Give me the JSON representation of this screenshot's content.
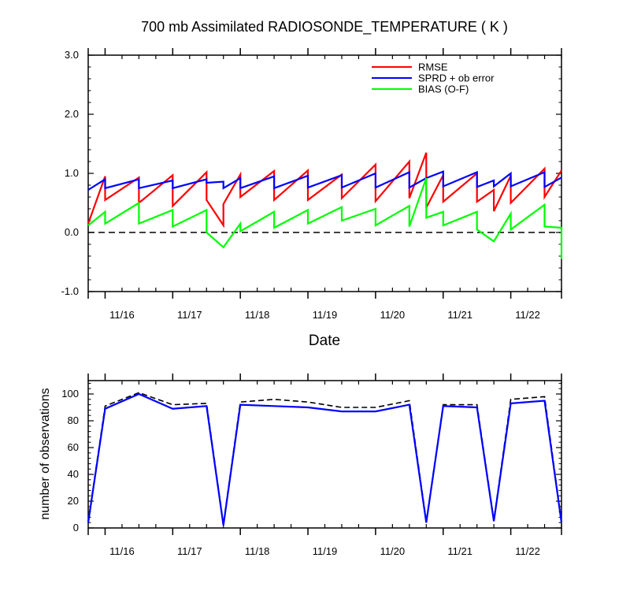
{
  "title": "700 mb Assimilated RADIOSONDE_TEMPERATURE ( K )",
  "chart_data": [
    {
      "type": "line",
      "name": "top",
      "xlabel": "Date",
      "ylabel": "",
      "xlim": [
        0,
        7
      ],
      "ylim": [
        -1.0,
        3.0
      ],
      "ytick_values": [
        -1.0,
        0.0,
        1.0,
        2.0,
        3.0
      ],
      "ytick_labels": [
        "-1.0",
        "0.0",
        "1.0",
        "2.0",
        "3.0"
      ],
      "xtick_labels": [
        "11/16",
        "11/17",
        "11/18",
        "11/19",
        "11/20",
        "11/21",
        "11/22"
      ],
      "zero_line": true,
      "legend_position": "top-right",
      "legend": [
        "RMSE",
        "SPRD + ob error",
        "BIAS (O-F)"
      ],
      "series": [
        {
          "name": "RMSE",
          "color": "#ff0000",
          "x": [
            0,
            0.25,
            0.25,
            0.75,
            0.75,
            1.25,
            1.25,
            1.75,
            1.75,
            2.0,
            2.0,
            2.25,
            2.25,
            2.75,
            2.75,
            3.25,
            3.25,
            3.75,
            3.75,
            4.25,
            4.25,
            4.75,
            4.75,
            5.0,
            5.0,
            5.25,
            5.25,
            5.75,
            5.75,
            6.0,
            6.0,
            6.25,
            6.25,
            6.75,
            6.75,
            7.0
          ],
          "values": [
            0.15,
            0.95,
            0.55,
            0.93,
            0.5,
            0.97,
            0.45,
            1.02,
            0.55,
            0.12,
            0.48,
            0.98,
            0.6,
            1.04,
            0.55,
            1.05,
            0.55,
            0.98,
            0.58,
            1.15,
            0.53,
            1.2,
            0.58,
            1.35,
            0.42,
            0.97,
            0.52,
            1.0,
            0.52,
            0.72,
            0.36,
            0.96,
            0.5,
            1.08,
            0.6,
            1.05
          ]
        },
        {
          "name": "SPRD + ob error",
          "color": "#0000ff",
          "x": [
            0,
            0.25,
            0.25,
            0.75,
            0.75,
            1.25,
            1.25,
            1.75,
            1.75,
            2.0,
            2.0,
            2.25,
            2.25,
            2.75,
            2.75,
            3.25,
            3.25,
            3.75,
            3.75,
            4.25,
            4.25,
            4.75,
            4.75,
            5.0,
            5.0,
            5.25,
            5.25,
            5.75,
            5.75,
            6.0,
            6.0,
            6.25,
            6.25,
            6.75,
            6.75,
            7.0
          ],
          "values": [
            0.72,
            0.9,
            0.75,
            0.9,
            0.75,
            0.88,
            0.75,
            0.9,
            0.84,
            0.86,
            0.75,
            0.92,
            0.75,
            0.95,
            0.75,
            0.96,
            0.76,
            0.97,
            0.76,
            1.0,
            0.76,
            1.02,
            0.76,
            0.92,
            0.92,
            1.03,
            0.78,
            1.02,
            0.77,
            0.88,
            0.78,
            1.0,
            0.78,
            1.02,
            0.77,
            0.93
          ]
        },
        {
          "name": "BIAS (O-F)",
          "color": "#00ff00",
          "x": [
            0,
            0.25,
            0.25,
            0.75,
            0.75,
            1.25,
            1.25,
            1.75,
            1.75,
            2.0,
            2.25,
            2.25,
            2.75,
            2.75,
            3.25,
            3.25,
            3.75,
            3.75,
            4.25,
            4.25,
            4.75,
            4.75,
            5.0,
            5.0,
            5.25,
            5.25,
            5.75,
            5.75,
            6.0,
            6.25,
            6.25,
            6.75,
            6.75,
            7.0,
            7.0
          ],
          "values": [
            0.12,
            0.35,
            0.15,
            0.5,
            0.15,
            0.38,
            0.1,
            0.38,
            0.0,
            -0.25,
            0.15,
            0.02,
            0.35,
            0.08,
            0.38,
            0.15,
            0.43,
            0.2,
            0.4,
            0.12,
            0.45,
            0.1,
            0.92,
            0.25,
            0.35,
            0.12,
            0.35,
            0.05,
            -0.15,
            0.32,
            0.05,
            0.47,
            0.1,
            0.08,
            -0.45
          ]
        }
      ]
    },
    {
      "type": "line",
      "name": "bottom",
      "xlabel": "",
      "ylabel": "number of observations",
      "xlim": [
        0,
        7
      ],
      "ylim": [
        0,
        110
      ],
      "ytick_values": [
        0,
        20,
        40,
        60,
        80,
        100
      ],
      "ytick_labels": [
        "0",
        "20",
        "40",
        "60",
        "80",
        "100"
      ],
      "xtick_labels": [
        "11/16",
        "11/17",
        "11/18",
        "11/19",
        "11/20",
        "11/21",
        "11/22"
      ],
      "series": [
        {
          "name": "observations (dashed)",
          "color": "#000000",
          "dashed": true,
          "x": [
            0,
            0.25,
            0.75,
            1.25,
            1.75,
            2.0,
            2.25,
            2.75,
            3.25,
            3.75,
            4.25,
            4.75,
            5.0,
            5.25,
            5.75,
            6.0,
            6.25,
            6.75,
            7.0
          ],
          "values": [
            5,
            91,
            101,
            92,
            93,
            3,
            94,
            96,
            94,
            90,
            90,
            95,
            5,
            92,
            92,
            6,
            96,
            98,
            5
          ]
        },
        {
          "name": "observations (solid)",
          "color": "#0000ff",
          "dashed": false,
          "x": [
            0,
            0.25,
            0.75,
            1.25,
            1.75,
            2.0,
            2.25,
            2.75,
            3.25,
            3.75,
            4.25,
            4.75,
            5.0,
            5.25,
            5.75,
            6.0,
            6.25,
            6.75,
            7.0
          ],
          "values": [
            4,
            89,
            100,
            89,
            91,
            2,
            92,
            91,
            90,
            87,
            87,
            92,
            4,
            91,
            90,
            5,
            93,
            95,
            4
          ]
        }
      ]
    }
  ]
}
